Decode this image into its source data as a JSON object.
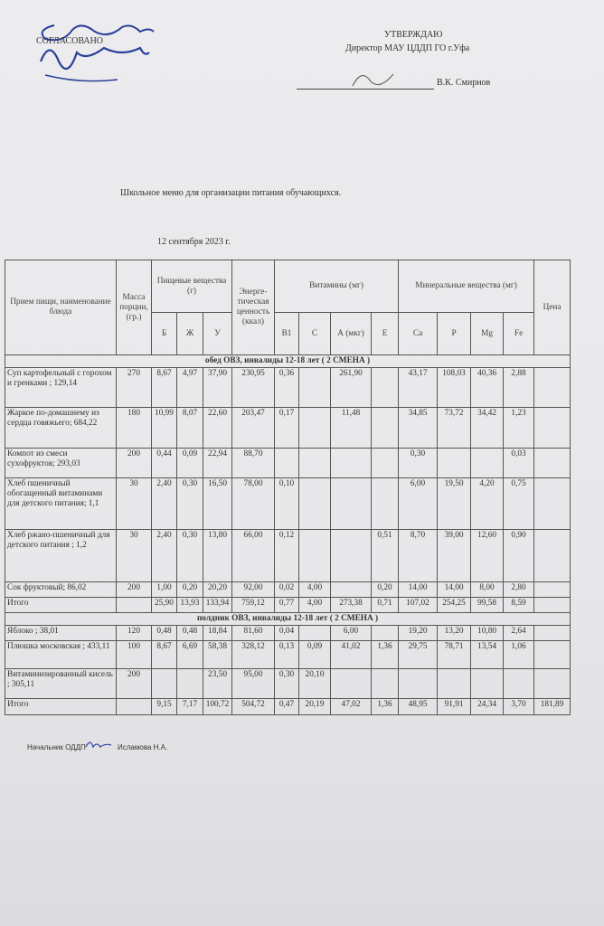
{
  "header": {
    "left_label": "СОГЛАСОВАНО",
    "right_label": "УТВЕРЖДАЮ",
    "right_position": "Директор МАУ ЦДДП ГО г.Уфа",
    "right_name": "В.К. Смирнов"
  },
  "title": "Школьное меню для организации питания обучающихся.",
  "date": "12 сентября 2023 г.",
  "columns": {
    "name": "Прием пищи, наименование блюда",
    "mass": "Масса порции, (гр.)",
    "nutrients": "Пищевые вещества (г)",
    "energy": "Энерге-тическая ценность (ккал)",
    "vitamins": "Витамины (мг)",
    "minerals": "Минеральные вещества (мг)",
    "price": "Цена",
    "sub": [
      "Б",
      "Ж",
      "У",
      "В1",
      "С",
      "А (мкг)",
      "Е",
      "Ca",
      "P",
      "Mg",
      "Fe"
    ]
  },
  "sections": [
    {
      "title": "обед ОВЗ, инвалиды 12-18 лет ( 2 СМЕНА )",
      "rows": [
        [
          "Суп картофельный с горохом и гренками ; 129,14",
          "270",
          "8,67",
          "4,97",
          "37,90",
          "230,95",
          "0,36",
          "",
          "261,90",
          "",
          "43,17",
          "108,03",
          "40,36",
          "2,88",
          ""
        ],
        [
          "Жаркое по-домашнему из сердца говяжьего; 684,22",
          "180",
          "10,99",
          "8,07",
          "22,60",
          "203,47",
          "0,17",
          "",
          "11,48",
          "",
          "34,85",
          "73,72",
          "34,42",
          "1,23",
          ""
        ],
        [
          "Компот из смеси сухофруктов; 293,03",
          "200",
          "0,44",
          "0,09",
          "22,94",
          "88,70",
          "",
          "",
          "",
          "",
          "0,30",
          "",
          "",
          "0,03",
          ""
        ],
        [
          "Хлеб пшеничный обогащенный витаминами для детского питания; 1,1",
          "30",
          "2,40",
          "0,30",
          "16,50",
          "78,00",
          "0,10",
          "",
          "",
          "",
          "6,00",
          "19,50",
          "4,20",
          "0,75",
          ""
        ],
        [
          "Хлеб ржано-пшеничный для детского питания ; 1,2",
          "30",
          "2,40",
          "0,30",
          "13,80",
          "66,00",
          "0,12",
          "",
          "",
          "0,51",
          "8,70",
          "39,00",
          "12,60",
          "0,90",
          ""
        ],
        [
          "Сок фруктовый; 86,02",
          "200",
          "1,00",
          "0,20",
          "20,20",
          "92,00",
          "0,02",
          "4,00",
          "",
          "0,20",
          "14,00",
          "14,00",
          "8,00",
          "2,80",
          ""
        ],
        [
          "Итого",
          "",
          "25,90",
          "13,93",
          "133,94",
          "759,12",
          "0,77",
          "4,00",
          "273,38",
          "0,71",
          "107,02",
          "254,25",
          "99,58",
          "8,59",
          ""
        ]
      ]
    },
    {
      "title": "полдник ОВЗ, инвалиды 12-18 лет ( 2 СМЕНА )",
      "rows": [
        [
          "Яблоко ; 38,01",
          "120",
          "0,48",
          "0,48",
          "18,84",
          "81,60",
          "0,04",
          "",
          "6,00",
          "",
          "19,20",
          "13,20",
          "10,80",
          "2,64",
          ""
        ],
        [
          "Плюшка московская ; 433,11",
          "100",
          "8,67",
          "6,69",
          "58,38",
          "328,12",
          "0,13",
          "0,09",
          "41,02",
          "1,36",
          "29,75",
          "78,71",
          "13,54",
          "1,06",
          ""
        ],
        [
          "Витаминизированный кисель ; 305,11",
          "200",
          "",
          "",
          "23,50",
          "95,00",
          "0,30",
          "20,10",
          "",
          "",
          "",
          "",
          "",
          "",
          ""
        ],
        [
          "Итого",
          "",
          "9,15",
          "7,17",
          "100,72",
          "504,72",
          "0,47",
          "20,19",
          "47,02",
          "1,36",
          "48,95",
          "91,91",
          "24,34",
          "3,70",
          "181,89"
        ]
      ]
    }
  ],
  "footer": {
    "label": "Начальник ОДДП",
    "name": "Исламова Н.А."
  },
  "colors": {
    "ink": "#333333",
    "signature": "#2a3f9a"
  }
}
